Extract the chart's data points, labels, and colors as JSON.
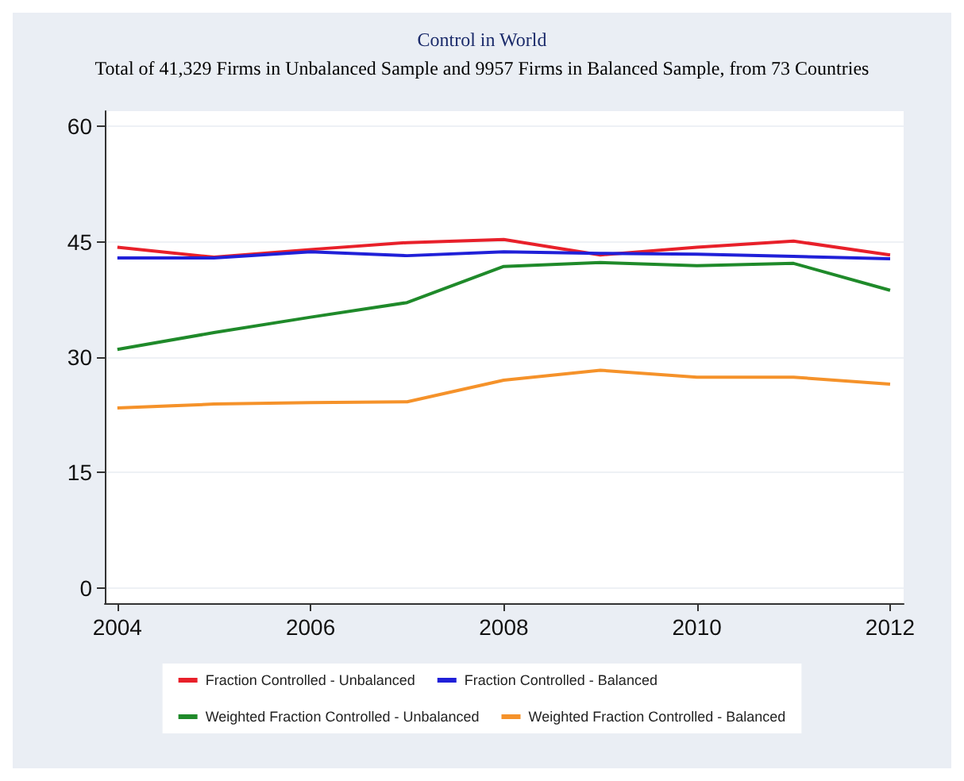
{
  "chart_data": {
    "type": "line",
    "title": "Control in World",
    "subtitle": "Total of 41,329 Firms in Unbalanced Sample and 9957 Firms in Balanced Sample, from 73 Countries",
    "x": [
      2004,
      2005,
      2006,
      2007,
      2008,
      2009,
      2010,
      2011,
      2012
    ],
    "series": [
      {
        "name": "Fraction Controlled - Unbalanced",
        "color": "#e8202a",
        "values": [
          44.3,
          43.0,
          44.0,
          44.9,
          45.3,
          43.3,
          44.3,
          45.1,
          43.3
        ]
      },
      {
        "name": "Fraction Controlled - Balanced",
        "color": "#2020d8",
        "values": [
          42.9,
          42.9,
          43.7,
          43.2,
          43.7,
          43.5,
          43.4,
          43.1,
          42.8
        ]
      },
      {
        "name": "Weighted Fraction Controlled - Unbalanced",
        "color": "#1f8a2a",
        "values": [
          31.0,
          33.2,
          35.2,
          37.1,
          41.8,
          42.3,
          41.9,
          42.2,
          38.7
        ]
      },
      {
        "name": "Weighted Fraction Controlled - Balanced",
        "color": "#f5922a",
        "values": [
          23.4,
          23.9,
          24.1,
          24.2,
          27.0,
          28.3,
          27.4,
          27.4,
          26.5
        ]
      }
    ],
    "xlim": [
      2003.87,
      2012.14
    ],
    "xticks": [
      2004,
      2006,
      2008,
      2010,
      2012
    ],
    "ylim": [
      -2,
      62
    ],
    "yticks": [
      0,
      15,
      30,
      45,
      60
    ],
    "grid": "y",
    "legend": "bottom",
    "marker": "none",
    "line_style": "solid"
  }
}
